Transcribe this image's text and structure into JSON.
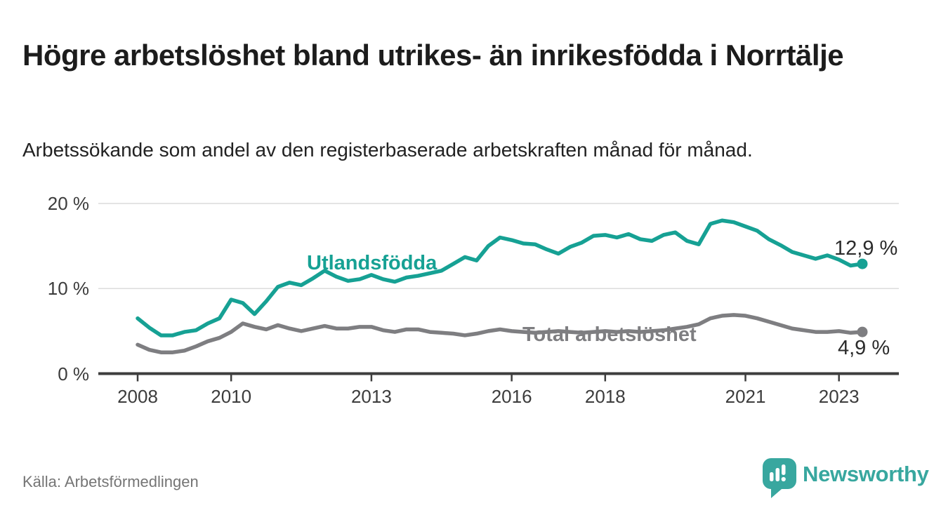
{
  "header": {
    "title": "Högre arbetslöshet bland utrikes- än inrikesfödda i Norrtälje",
    "subtitle": "Arbetssökande som andel av den registerbaserade arbetskraften månad för månad."
  },
  "chart_data": {
    "type": "line",
    "title": "Högre arbetslöshet bland utrikes- än inrikesfödda i Norrtälje",
    "ylabel": "Arbetssökande som andel av den registerbaserade arbetskraften",
    "unit": "%",
    "ylim": [
      0,
      20
    ],
    "grid": "horizontal",
    "legend": "inline-labels",
    "y_ticks": [
      {
        "value": 20,
        "label": "20 %"
      },
      {
        "value": 10,
        "label": "10 %"
      },
      {
        "value": 0,
        "label": "0 %"
      }
    ],
    "x_ticks": [
      2008,
      2010,
      2013,
      2016,
      2018,
      2021,
      2023
    ],
    "x": [
      "2008-01",
      "2008-04",
      "2008-07",
      "2008-10",
      "2009-01",
      "2009-04",
      "2009-07",
      "2009-10",
      "2010-01",
      "2010-04",
      "2010-07",
      "2010-10",
      "2011-01",
      "2011-04",
      "2011-07",
      "2011-10",
      "2012-01",
      "2012-04",
      "2012-07",
      "2012-10",
      "2013-01",
      "2013-04",
      "2013-07",
      "2013-10",
      "2014-01",
      "2014-04",
      "2014-07",
      "2014-10",
      "2015-01",
      "2015-04",
      "2015-07",
      "2015-10",
      "2016-01",
      "2016-04",
      "2016-07",
      "2016-10",
      "2017-01",
      "2017-04",
      "2017-07",
      "2017-10",
      "2018-01",
      "2018-04",
      "2018-07",
      "2018-10",
      "2019-01",
      "2019-04",
      "2019-07",
      "2019-10",
      "2020-01",
      "2020-04",
      "2020-07",
      "2020-10",
      "2021-01",
      "2021-04",
      "2021-07",
      "2021-10",
      "2022-01",
      "2022-04",
      "2022-07",
      "2022-10",
      "2023-01",
      "2023-04",
      "2023-07"
    ],
    "series": [
      {
        "name": "Utlandsfödda",
        "color": "#16a194",
        "end_label": "12,9 %",
        "end_value": 12.9,
        "values": [
          6.5,
          5.4,
          4.5,
          4.5,
          4.9,
          5.1,
          5.9,
          6.5,
          8.7,
          8.3,
          7.0,
          8.5,
          10.2,
          10.7,
          10.4,
          11.2,
          12.1,
          11.4,
          10.9,
          11.1,
          11.6,
          11.1,
          10.8,
          11.3,
          11.5,
          11.8,
          12.1,
          12.9,
          13.7,
          13.3,
          15.0,
          16.0,
          15.7,
          15.3,
          15.2,
          14.6,
          14.1,
          14.9,
          15.4,
          16.2,
          16.3,
          16.0,
          16.4,
          15.8,
          15.6,
          16.3,
          16.6,
          15.6,
          15.2,
          17.6,
          18.0,
          17.8,
          17.3,
          16.8,
          15.8,
          15.1,
          14.3,
          13.9,
          13.5,
          13.9,
          13.4,
          12.7,
          12.9
        ]
      },
      {
        "name": "Total arbetslöshet",
        "color": "#7e7e81",
        "end_label": "4,9 %",
        "end_value": 4.9,
        "values": [
          3.4,
          2.8,
          2.5,
          2.5,
          2.7,
          3.2,
          3.8,
          4.2,
          4.9,
          5.9,
          5.5,
          5.2,
          5.7,
          5.3,
          5.0,
          5.3,
          5.6,
          5.3,
          5.3,
          5.5,
          5.5,
          5.1,
          4.9,
          5.2,
          5.2,
          4.9,
          4.8,
          4.7,
          4.5,
          4.7,
          5.0,
          5.2,
          5.0,
          4.9,
          4.8,
          4.9,
          5.0,
          4.9,
          4.8,
          4.9,
          5.0,
          4.9,
          5.0,
          4.9,
          5.0,
          5.1,
          5.3,
          5.5,
          5.8,
          6.5,
          6.8,
          6.9,
          6.8,
          6.5,
          6.1,
          5.7,
          5.3,
          5.1,
          4.9,
          4.9,
          5.0,
          4.8,
          4.9
        ]
      }
    ]
  },
  "footer": {
    "source": "Källa: Arbetsförmedlingen",
    "logo_text": "Newsworthy"
  },
  "colors": {
    "accent_teal": "#16a194",
    "line_gray": "#7e7e81",
    "axis": "#3d3d3d",
    "gridline": "#dcdcdc",
    "logo_teal": "#38a79f"
  }
}
